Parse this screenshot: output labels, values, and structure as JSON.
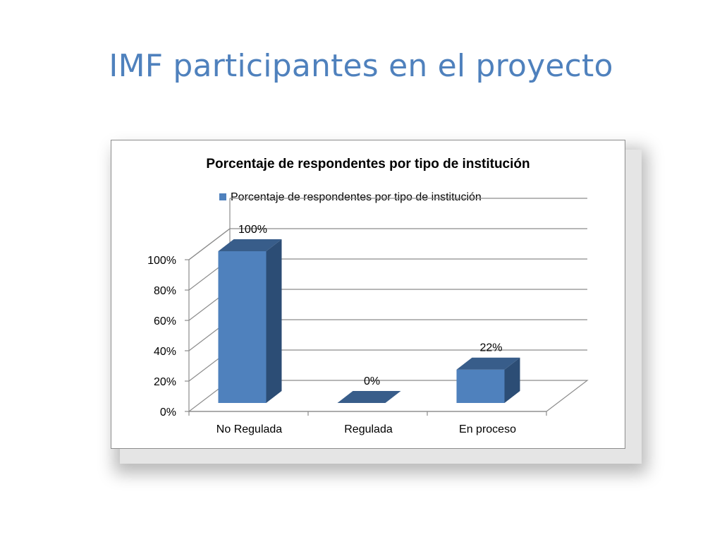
{
  "slide": {
    "title": "IMF participantes en el proyecto"
  },
  "colors": {
    "title": "#4f81bd",
    "bar_front": "#4f81bd",
    "bar_side": "#2c4d75",
    "bar_top": "#385d8a",
    "gridline": "#8c8c8c"
  },
  "chart_data": {
    "type": "bar",
    "style": "3d-column",
    "title": "Porcentaje de respondentes por tipo de institución",
    "legend": {
      "position": "top",
      "entries": [
        "Porcentaje de respondentes por tipo de institución"
      ]
    },
    "categories": [
      "No Regulada",
      "Regulada",
      "En proceso"
    ],
    "series": [
      {
        "name": "Porcentaje de respondentes por tipo de institución",
        "values": [
          100,
          0,
          22
        ],
        "data_labels": [
          "100%",
          "0%",
          "22%"
        ]
      }
    ],
    "y_ticks": [
      "0%",
      "20%",
      "40%",
      "60%",
      "80%",
      "100%"
    ],
    "ylim": [
      0,
      100
    ],
    "grid": true
  }
}
